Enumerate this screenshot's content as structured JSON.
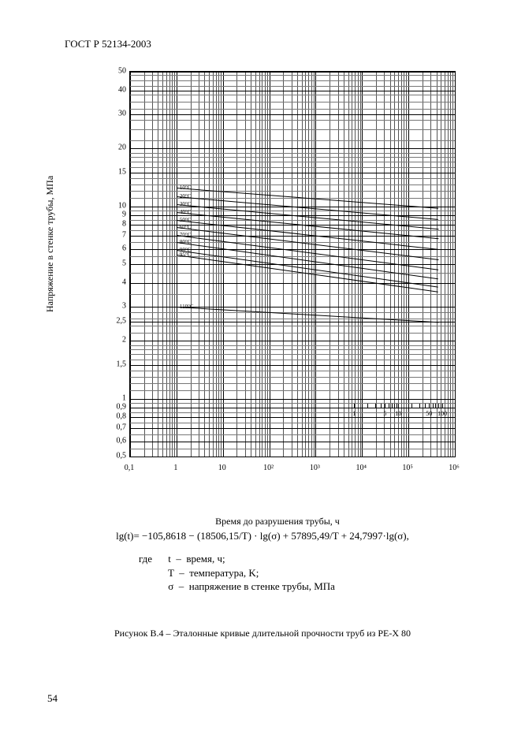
{
  "page": {
    "doc_header": "ГОСТ Р 52134-2003",
    "page_number": "54"
  },
  "chart": {
    "type": "log-log-line-chart",
    "ylabel": "Напряжение в стенке трубы, МПа",
    "xlabel": "Время до разрушения трубы, ч",
    "xmin": 0.1,
    "xmax": 1000000,
    "ymin": 0.5,
    "ymax": 50,
    "yticks": [
      {
        "v": 50,
        "l": "50"
      },
      {
        "v": 40,
        "l": "40"
      },
      {
        "v": 30,
        "l": "30"
      },
      {
        "v": 20,
        "l": "20"
      },
      {
        "v": 15,
        "l": "15"
      },
      {
        "v": 10,
        "l": "10"
      },
      {
        "v": 9,
        "l": "9"
      },
      {
        "v": 8,
        "l": "8"
      },
      {
        "v": 7,
        "l": "7"
      },
      {
        "v": 6,
        "l": "6"
      },
      {
        "v": 5,
        "l": "5"
      },
      {
        "v": 4,
        "l": "4"
      },
      {
        "v": 3,
        "l": "3"
      },
      {
        "v": 2.5,
        "l": "2,5"
      },
      {
        "v": 2,
        "l": "2"
      },
      {
        "v": 1.5,
        "l": "1,5"
      },
      {
        "v": 1,
        "l": "1"
      },
      {
        "v": 0.9,
        "l": "0,9"
      },
      {
        "v": 0.8,
        "l": "0,8"
      },
      {
        "v": 0.7,
        "l": "0,7"
      },
      {
        "v": 0.6,
        "l": "0,6"
      },
      {
        "v": 0.5,
        "l": "0,5"
      }
    ],
    "xticks": [
      {
        "v": 0.1,
        "l": "0,1"
      },
      {
        "v": 1,
        "l": "1"
      },
      {
        "v": 10,
        "l": "10"
      },
      {
        "v": 100,
        "l": "10²"
      },
      {
        "v": 1000,
        "l": "10³"
      },
      {
        "v": 10000,
        "l": "10⁴"
      },
      {
        "v": 100000,
        "l": "10⁵"
      },
      {
        "v": 1000000,
        "l": "10⁶"
      }
    ],
    "x_decade_minors": [
      2,
      3,
      4,
      5,
      6,
      7,
      8,
      9
    ],
    "y_minor": [
      0.55,
      0.65,
      0.75,
      0.85,
      0.95,
      1.1,
      1.2,
      1.3,
      1.4,
      1.6,
      1.7,
      1.8,
      1.9,
      2.2,
      2.4,
      2.6,
      2.8,
      3.5,
      4.5,
      5.5,
      6.5,
      7.5,
      8.5,
      9.5,
      11,
      12,
      13,
      14,
      16,
      17,
      18,
      19,
      22,
      25,
      28,
      32,
      35,
      38,
      42,
      45,
      48
    ],
    "curves": [
      {
        "label": "10°С",
        "y_start": 12.5,
        "y_end": 9.8
      },
      {
        "label": "20°С",
        "y_start": 11.3,
        "y_end": 8.6
      },
      {
        "label": "30°С",
        "y_start": 10.2,
        "y_end": 7.6
      },
      {
        "label": "40°С",
        "y_start": 9.3,
        "y_end": 6.8
      },
      {
        "label": "50°С",
        "y_start": 8.5,
        "y_end": 6.0
      },
      {
        "label": "60°С",
        "y_start": 7.8,
        "y_end": 5.3
      },
      {
        "label": "70°С",
        "y_start": 7.1,
        "y_end": 4.7
      },
      {
        "label": "80°С",
        "y_start": 6.5,
        "y_end": 4.2
      },
      {
        "label": "90°С",
        "y_start": 5.9,
        "y_end": 3.8
      },
      {
        "label": "95°С",
        "y_start": 5.6,
        "y_end": 3.6
      },
      {
        "label": "110°С",
        "y_start": 3.0,
        "y_end": 2.5
      }
    ],
    "curve_x_start": 1,
    "curve_x_end": 438500,
    "mini_scale": {
      "labels": [
        {
          "v": 1,
          "l": "1"
        },
        {
          "v": 5,
          "l": "5"
        },
        {
          "v": 10,
          "l": "10"
        },
        {
          "v": 50,
          "l": "50"
        },
        {
          "v": 100,
          "l": "100"
        }
      ],
      "xmin": 1,
      "xmax": 100
    },
    "grid_color": "#2a2a2a",
    "background": "#ffffff"
  },
  "equation": {
    "formula": "lg(t)= −105,8618 − (18506,15/T) · lg(σ) + 57895,49/T + 24,7997·lg(σ),",
    "where_word": "где",
    "vars": [
      {
        "sym": "t",
        "desc": "время, ч;"
      },
      {
        "sym": "T",
        "desc": "температура, K;"
      },
      {
        "sym": "σ",
        "desc": "напряжение в стенке трубы, МПа"
      }
    ]
  },
  "caption": "Рисунок B.4 – Эталонные кривые длительной прочности труб из PE-X 80"
}
